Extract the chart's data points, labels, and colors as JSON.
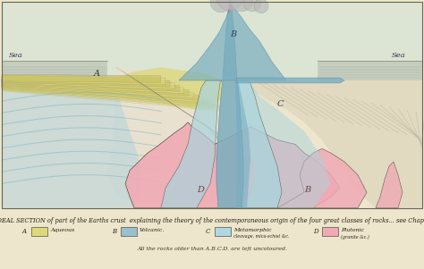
{
  "fig_width": 4.74,
  "fig_height": 3.01,
  "dpi": 100,
  "paper_color": "#ede5cc",
  "border_color": "#666655",
  "title_text": "IDEAL SECTION of part of the Earths crust  explaining the theory of the contemporaneous origin of the four great classes of rocks... see Chap.I.",
  "subtitle_text": "All the rocks older than A.B.C.D. are left uncoloured.",
  "legend_labels": [
    "A",
    "B",
    "C",
    "D"
  ],
  "legend_texts": [
    "Aqueous",
    "Volcanic.",
    "Metamorphic\ncleavage, mica-schist &c.",
    "Plutonic\n(granite &c.)"
  ],
  "legend_colors": [
    "#ddd87a",
    "#9abfce",
    "#b0d8e0",
    "#f0aab5"
  ],
  "sea_label": "Sea",
  "sky_color": "#e8e0cc",
  "sea_bg_color": "#c0c8b8",
  "sea_water_color": "#a8c0c8",
  "aqueous_color": "#ddd87a",
  "aqueous_dark": "#c8c060",
  "volcanic_color": "#7aaec0",
  "volcanic_dark": "#5890a8",
  "metamorphic_color": "#a8d4dc",
  "plutonic_color": "#f0aab5",
  "plutonic_blob_color": "#e898a8",
  "hatch_color": "#888877",
  "lava_red": "#cc5566",
  "cloud_color": "#bbbbbb",
  "rock_line": "#444433"
}
